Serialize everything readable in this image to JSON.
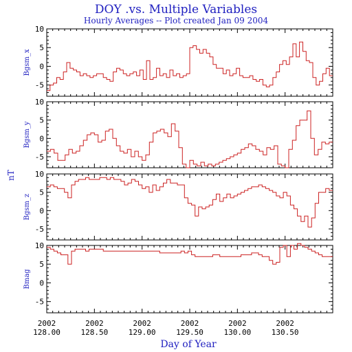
{
  "chart_data": {
    "type": "line",
    "title": "DOY .vs. Multiple Variables",
    "subtitle": "Hourly Averages -- Plot created Jan 09 2004",
    "xlabel": "Day of Year",
    "shared_ylabel": "nT",
    "xlim": [
      128.0,
      129.0
    ],
    "x_ticks": [
      {
        "year": "2002",
        "value": "128.00"
      },
      {
        "year": "2002",
        "value": "128.50"
      },
      {
        "year": "2002",
        "value": "129.00"
      },
      {
        "year": "2002",
        "value": "129.50"
      },
      {
        "year": "2002",
        "value": "130.00"
      },
      {
        "year": "2002",
        "value": "130.50"
      }
    ],
    "x_tick_values": [
      128.0,
      128.5,
      129.0,
      129.5,
      130.0,
      130.5
    ],
    "x_range": [
      128.0,
      131.0
    ],
    "color": "#cc2020",
    "panels": [
      {
        "name": "Bgsm_x",
        "ylabel": "Bgsm_x",
        "ylim": [
          -8,
          10
        ],
        "y_ticks": [
          "10",
          "5",
          "0",
          "-5"
        ],
        "y_tick_values": [
          10,
          5,
          0,
          -5
        ],
        "values": [
          -6.5,
          -5,
          -4.5,
          -3,
          -3.5,
          -1.5,
          1,
          -0.5,
          -1,
          -1.5,
          -2.5,
          -2,
          -2.5,
          -3,
          -2.5,
          -2,
          -2,
          -3,
          -3.5,
          -4,
          -1.5,
          -0.5,
          -1,
          -2,
          -2.5,
          -2,
          -1.5,
          -2.5,
          -1,
          -3.5,
          1.5,
          -3.5,
          -3,
          -0.5,
          -2.5,
          -2,
          -3,
          -1,
          -2.5,
          -2,
          -3,
          -2.5,
          -2,
          5,
          5.5,
          4.5,
          3.5,
          4.5,
          3.5,
          2.5,
          0.5,
          -0.5,
          -0.5,
          -2,
          -1,
          -2.5,
          -2,
          -0.5,
          -2.5,
          -3,
          -3,
          -2.5,
          -3.5,
          -4,
          -3.5,
          -5,
          -5.5,
          -5,
          -3,
          -1.5,
          0.5,
          1.5,
          0.5,
          2.5,
          6,
          2.5,
          6.5,
          4,
          1.5,
          1,
          -3,
          -5,
          -4,
          -2,
          -0.5,
          -2.5
        ]
      },
      {
        "name": "Bgsm_y",
        "ylabel": "Bgsm_y",
        "ylim": [
          -8,
          10
        ],
        "y_ticks": [
          "10",
          "5",
          "0",
          "-5"
        ],
        "y_tick_values": [
          10,
          5,
          0,
          -5
        ],
        "values": [
          -3.5,
          -3,
          -4,
          -6,
          -6,
          -4.5,
          -3,
          -4,
          -3.5,
          -2,
          -0.5,
          1,
          1.5,
          1,
          -1,
          -0.5,
          2,
          2.5,
          0,
          -2,
          -3.5,
          -4,
          -3,
          -5,
          -3.5,
          -5,
          -6,
          -4.5,
          -1,
          1.5,
          2,
          2.5,
          1.5,
          0.5,
          4,
          2,
          -2.5,
          -7,
          -8,
          -6,
          -7,
          -7.5,
          -6.5,
          -7.5,
          -7,
          -7.5,
          -7,
          -6.5,
          -6,
          -5.5,
          -5,
          -4.5,
          -4,
          -3,
          -2.5,
          -1.5,
          -2,
          -3,
          -3.5,
          -4.5,
          -2.5,
          -3,
          -2,
          -7,
          -7.5,
          -8,
          -3,
          -0.5,
          3.5,
          5,
          5,
          7.5,
          0,
          -4.5,
          -3,
          -1,
          -1.5,
          -1
        ]
      },
      {
        "name": "Bgsm_z",
        "ylabel": "Bgsm_z",
        "ylim": [
          -8,
          10
        ],
        "y_ticks": [
          "10",
          "5",
          "0",
          "-5"
        ],
        "y_tick_values": [
          10,
          5,
          0,
          -5
        ],
        "values": [
          6.5,
          7,
          6.5,
          6,
          6,
          5,
          3.5,
          7,
          8,
          8.5,
          8.5,
          9,
          8.5,
          8.5,
          8.5,
          9,
          9,
          8.5,
          9,
          8.5,
          8.5,
          8,
          7,
          7.5,
          8.5,
          8,
          7,
          6,
          6.5,
          5,
          7,
          5.5,
          6.5,
          7.5,
          8.5,
          7.5,
          7.5,
          7,
          7,
          3.5,
          2,
          1.5,
          -1.5,
          1,
          0.5,
          1,
          1.5,
          3,
          4.5,
          2.5,
          3.5,
          4.5,
          3.5,
          4,
          4.5,
          5,
          5.5,
          6,
          6.5,
          6.5,
          7,
          6.5,
          6,
          5.5,
          5,
          4,
          3.5,
          5,
          4,
          1.5,
          0.5,
          -1.5,
          -3,
          -1.5,
          -4.5,
          -2,
          2,
          5,
          5,
          6,
          5.5
        ]
      },
      {
        "name": "Bmag",
        "ylabel": "Bmag",
        "ylim": [
          -8,
          10
        ],
        "y_ticks": [
          "10",
          "5",
          "0",
          "-5"
        ],
        "y_tick_values": [
          10,
          5,
          0,
          -5
        ],
        "values": [
          9.5,
          9,
          8.5,
          8,
          7.5,
          7.5,
          5,
          8.5,
          9,
          9,
          9,
          8.5,
          9,
          9,
          9,
          9,
          8.5,
          8.5,
          8.5,
          8.5,
          8.5,
          8.5,
          8.5,
          8.5,
          8.5,
          8.5,
          8.5,
          8.5,
          8.5,
          8.5,
          8.5,
          8.5,
          8,
          8,
          8,
          8,
          8,
          8,
          8.5,
          8,
          8.5,
          7.5,
          7,
          7,
          7,
          7,
          7,
          7.5,
          7.5,
          7,
          7,
          7,
          7,
          7,
          7,
          7.5,
          7.5,
          7.5,
          8,
          8,
          7.5,
          7,
          7,
          6,
          5,
          5.5,
          9.5,
          10,
          7,
          10,
          9,
          10.5,
          10,
          9.5,
          9,
          8.5,
          8,
          7.5,
          7,
          7,
          7
        ]
      }
    ]
  }
}
